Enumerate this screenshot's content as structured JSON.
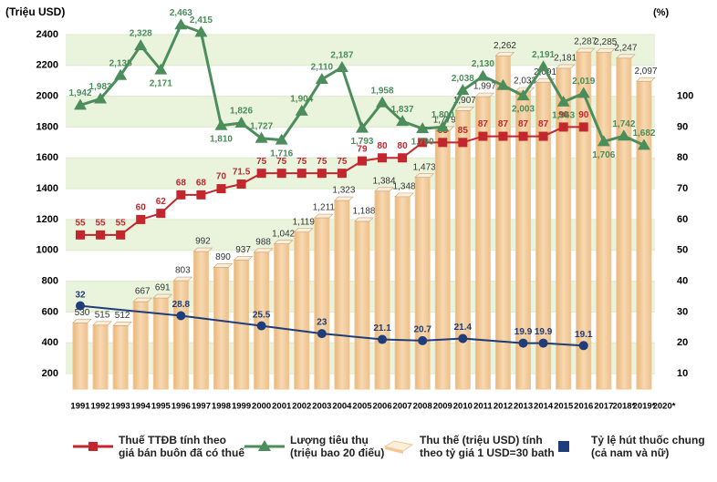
{
  "chart_data": {
    "type": "bar-line",
    "y_label": "(Triệu USD)",
    "y2_label": "(%)",
    "categories": [
      "1991",
      "1992",
      "1993",
      "1994",
      "1995",
      "1996",
      "1997",
      "1998",
      "1999",
      "2000",
      "2001",
      "2002",
      "2003",
      "2004",
      "2005",
      "2006",
      "2007",
      "2008",
      "2009",
      "2010",
      "2011",
      "2012",
      "2013",
      "2014",
      "2015",
      "2016",
      "2017",
      "2018*",
      "2019*",
      "2020*"
    ],
    "ylim": [
      100,
      2500
    ],
    "yticks": [
      200,
      400,
      600,
      800,
      1000,
      1200,
      1400,
      1600,
      1800,
      2000,
      2200,
      2400
    ],
    "y2lim": [
      5,
      125
    ],
    "y2ticks": [
      10,
      20,
      30,
      40,
      50,
      60,
      70,
      80,
      90,
      100
    ],
    "grid": true,
    "legend": "bottom",
    "series": [
      {
        "name": "Thu thế (triệu USD) tính\ntheo tỷ giá 1 USD=30 bath",
        "type": "bar",
        "axis": "y",
        "color": "#f2c794",
        "values": [
          530,
          515,
          512,
          667,
          691,
          803,
          992,
          890,
          937,
          988,
          1042,
          1119,
          1211,
          1323,
          1188,
          1384,
          1348,
          1473,
          1779,
          1907,
          1997,
          2262,
          2033,
          2091,
          2181,
          2287,
          2285,
          2247,
          2097,
          null
        ],
        "value_labels": [
          "530",
          "515",
          "512",
          "667",
          "691",
          "803",
          "992",
          "890",
          "937",
          "988",
          "1,042",
          "1,119",
          "1,211",
          "1,323",
          "1,188",
          "1,384",
          "1,348",
          "1,473",
          "1,779",
          "1,907",
          "1,997",
          "2,262",
          "2,033",
          "2,091",
          "2,181",
          "2,287",
          "2,285",
          "2,247",
          "2,097",
          null
        ]
      },
      {
        "name": "Thuế TTĐB tính theo\ngiá bán buôn đã có thuế",
        "type": "line",
        "marker": "square",
        "axis": "y2",
        "color": "#c1272d",
        "values": [
          55,
          55,
          55,
          60,
          62,
          68,
          68,
          70,
          71.5,
          75,
          75,
          75,
          75,
          75,
          79,
          80,
          80,
          85,
          85,
          85,
          87,
          87,
          87,
          87,
          90,
          90,
          null,
          null,
          null,
          null
        ]
      },
      {
        "name": "Lượng tiêu thụ\n(triệu bao 20 điếu)",
        "type": "line",
        "marker": "triangle",
        "axis": "y",
        "color": "#4b8d5b",
        "values": [
          1942,
          1983,
          2135,
          2328,
          2171,
          2463,
          2415,
          1810,
          1826,
          1727,
          1716,
          1904,
          2110,
          2187,
          1793,
          1958,
          1837,
          1790,
          1800,
          2038,
          2130,
          2070,
          2003,
          2191,
          1963,
          2019,
          1706,
          1742,
          1682,
          null
        ],
        "value_labels": [
          "1,942",
          "1,983",
          "2,135",
          "2,328",
          "2,171",
          "2,463",
          "2,415",
          "1,810",
          "1,826",
          "1,727",
          "1,716",
          "1,904",
          "2,110",
          "2,187",
          "1,793",
          "1,958",
          "1,837",
          "1,790",
          "1,800",
          "2,038",
          "2,130",
          null,
          "2,003",
          "2,191",
          "1,963",
          "2,019",
          "1,706",
          "1,742",
          "1,682",
          null
        ]
      },
      {
        "name": "Tỷ lệ hút thuốc chung\n(cả nam và nữ)",
        "type": "line",
        "marker": "circle",
        "axis": "y2",
        "color": "#1f3d7a",
        "x": [
          "1991",
          "1996",
          "2000",
          "2003",
          "2006",
          "2008",
          "2010",
          "2013",
          "2014",
          "2016"
        ],
        "values": [
          32,
          28.8,
          25.5,
          23,
          21.1,
          20.7,
          21.4,
          19.9,
          19.9,
          19.1
        ]
      }
    ]
  }
}
